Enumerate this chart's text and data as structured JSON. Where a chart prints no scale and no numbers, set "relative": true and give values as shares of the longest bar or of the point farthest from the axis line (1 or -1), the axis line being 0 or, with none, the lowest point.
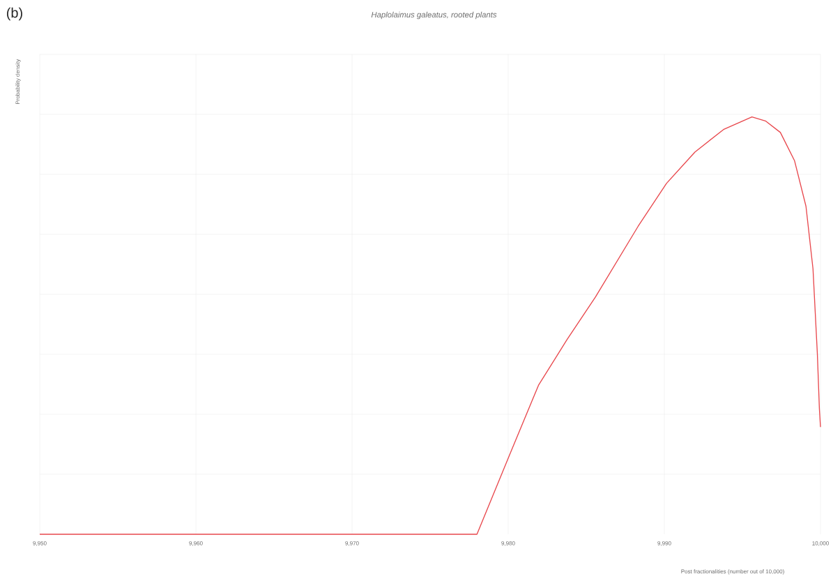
{
  "chart_data": {
    "type": "line",
    "title": "*Haplolaimus galeatus, rooted plants*",
    "xlabel": "Post fractionalities (number out of 10,000)",
    "ylabel": "Probability density",
    "annotations": [
      "(b)"
    ],
    "relative": true,
    "x": [
      9950,
      9978,
      9980.12,
      9981.94,
      9983.76,
      9985.58,
      9988.32,
      9990.14,
      9991.96,
      9993.79,
      9995.61,
      9996.5,
      9997.43,
      9998.34,
      9999.07,
      9999.52,
      9999.8,
      9999.93,
      10000
    ],
    "series": [
      {
        "color": "#e8474c",
        "values": [
          0,
          0,
          0.193,
          0.357,
          0.466,
          0.568,
          0.738,
          0.841,
          0.916,
          0.97,
          1,
          0.99,
          0.963,
          0.895,
          0.786,
          0.636,
          0.432,
          0.3,
          0.257
        ]
      }
    ],
    "xlim": [
      9950,
      10000
    ],
    "xticks": [
      {
        "value": 9950,
        "label": "9,950"
      },
      {
        "value": 9960,
        "label": "9,960"
      },
      {
        "value": 9970,
        "label": "9,970"
      },
      {
        "value": 9980,
        "label": "9,980"
      },
      {
        "value": 9990,
        "label": "9,990"
      },
      {
        "value": 10000,
        "label": "10,000"
      }
    ],
    "tick_labels": "x",
    "grid": true,
    "marker": "none",
    "line_style": "solid"
  }
}
